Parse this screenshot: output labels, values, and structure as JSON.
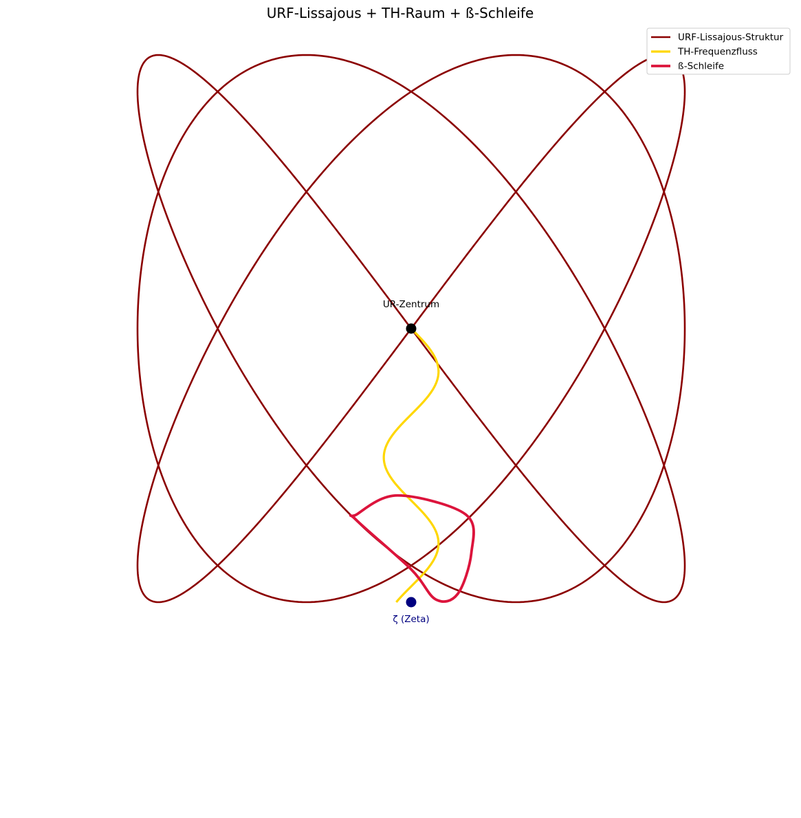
{
  "chart_data": {
    "type": "line",
    "title": "URF-Lissajous + TH-Raum + ß-Schleife",
    "axes_visible": false,
    "xlim": [
      -1.1,
      1.1
    ],
    "ylim": [
      -1.1,
      1.1
    ],
    "legend": {
      "position": "top-right",
      "entries": [
        {
          "label": "URF-Lissajous-Struktur",
          "color": "#8b0000"
        },
        {
          "label": "TH-Frequenzfluss",
          "color": "#ffd700"
        },
        {
          "label": "ß-Schleife",
          "color": "#dc143c"
        }
      ]
    },
    "series": [
      {
        "name": "URF-Lissajous-Struktur",
        "color": "#8b0000",
        "x_formula": "sin(3t + π/2)",
        "y_formula": "sin(4t)",
        "t_range": [
          0,
          6.283
        ]
      },
      {
        "name": "TH-Frequenzfluss",
        "color": "#ffd700",
        "x_formula": "0.1·sin(10t)",
        "y_formula": "-t",
        "t_range": [
          0,
          1
        ]
      },
      {
        "name": "ß-Schleife",
        "color": "#dc143c",
        "points": [
          [
            -0.2,
            -0.68
          ],
          [
            -0.05,
            -0.61
          ],
          [
            0.2,
            -0.68
          ],
          [
            0.22,
            -0.82
          ],
          [
            0.17,
            -0.97
          ],
          [
            0.09,
            -0.99
          ],
          [
            0,
            -0.88
          ],
          [
            -0.2,
            -0.7
          ]
        ]
      }
    ],
    "annotations": [
      {
        "label": "UR-Zentrum",
        "x": 0,
        "y": 0,
        "color": "#000000"
      },
      {
        "label": "ζ (Zeta)",
        "x": 0,
        "y": -1,
        "color": "#000080"
      }
    ]
  }
}
